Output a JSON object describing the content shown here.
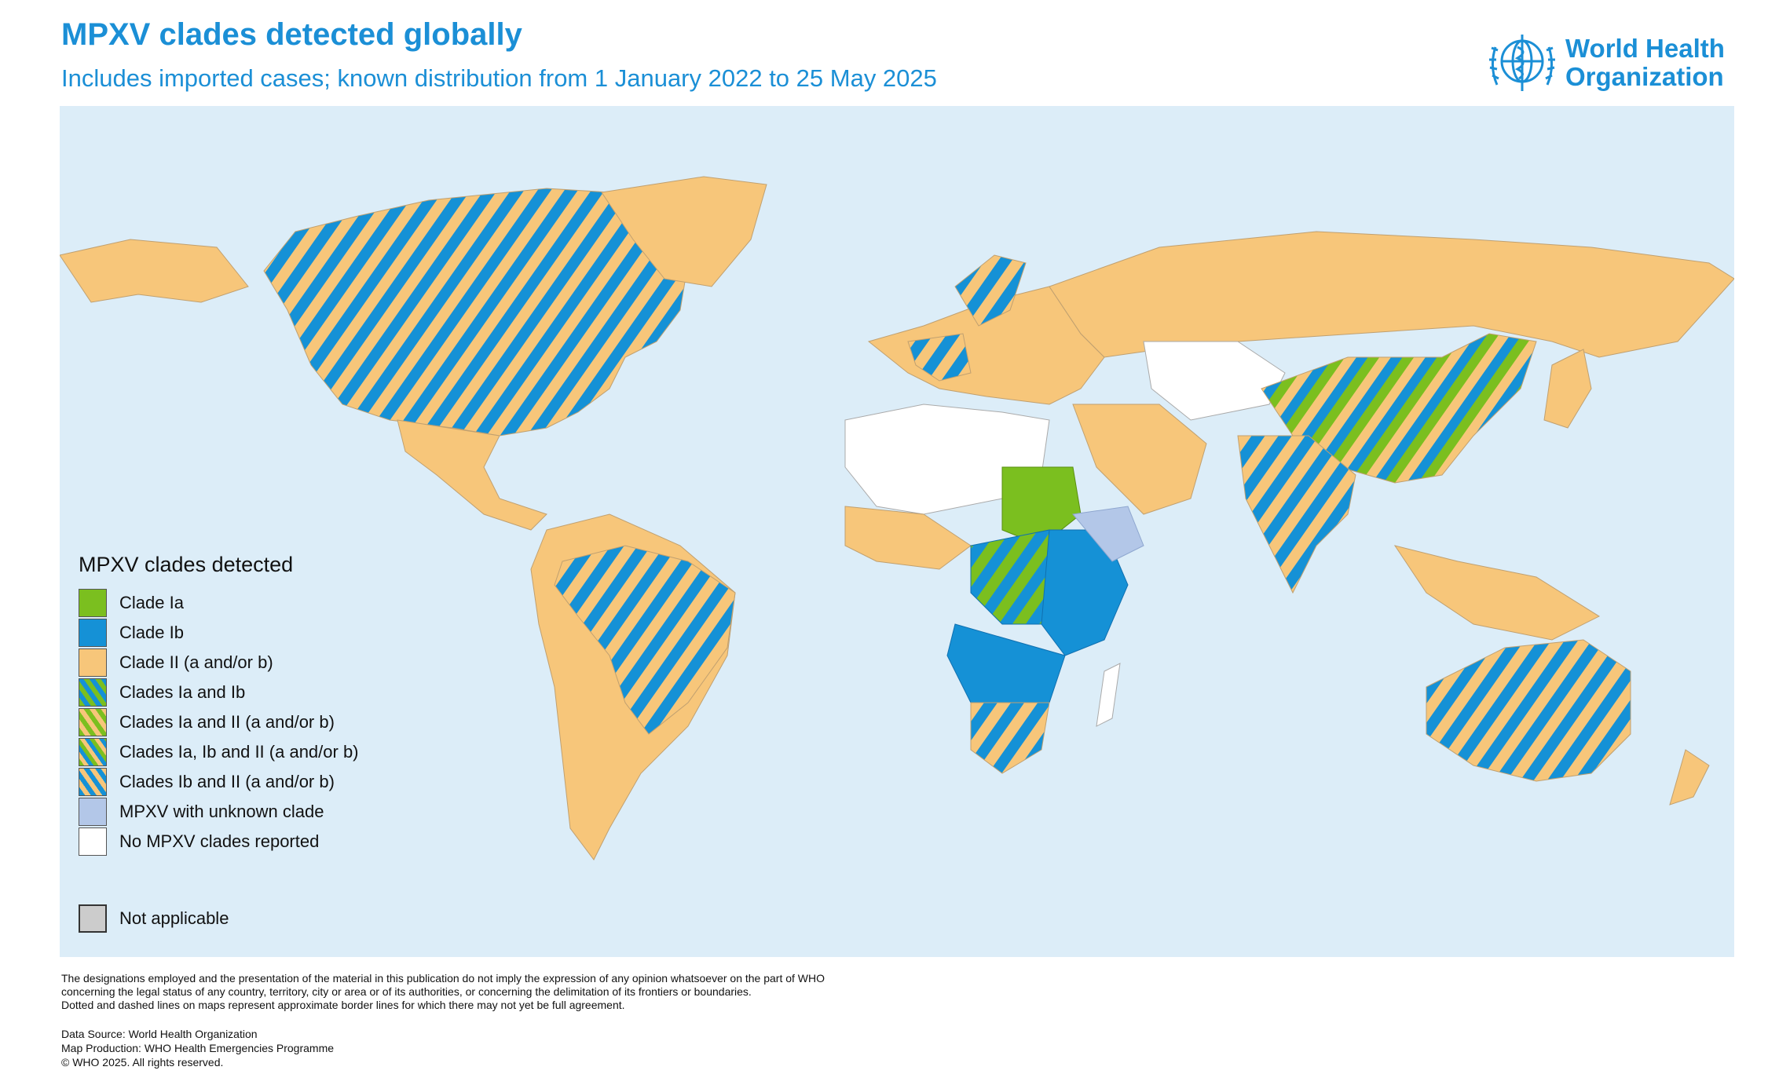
{
  "header": {
    "title": "MPXV clades detected globally",
    "subtitle": "Includes imported cases; known distribution from 1 January 2022 to 25 May 2025"
  },
  "logo": {
    "line1": "World Health",
    "line2": "Organization",
    "icon": "who-emblem-icon"
  },
  "colors": {
    "ocean": "#dcedf8",
    "clade_ia": "#7bbf1f",
    "clade_ib": "#1591d6",
    "clade_ii": "#f7c67a",
    "unknown": "#b3c7e8",
    "none": "#ffffff",
    "not_applicable": "#cccccc"
  },
  "legend": {
    "title": "MPXV clades detected",
    "items": [
      {
        "label": "Clade Ia",
        "fill": "clade_ia"
      },
      {
        "label": "Clade Ib",
        "fill": "clade_ib"
      },
      {
        "label": "Clade II (a and/or b)",
        "fill": "clade_ii"
      },
      {
        "label": "Clades Ia and Ib",
        "fill": "stripe_ia_ib"
      },
      {
        "label": "Clades Ia and II (a and/or b)",
        "fill": "stripe_ia_ii"
      },
      {
        "label": "Clades Ia, Ib and II (a and/or b)",
        "fill": "stripe_ia_ib_ii"
      },
      {
        "label": "Clades Ib and II (a and/or b)",
        "fill": "stripe_ib_ii"
      },
      {
        "label": "MPXV with unknown clade",
        "fill": "unknown"
      },
      {
        "label": "No MPXV clades reported",
        "fill": "none"
      }
    ],
    "not_applicable": "Not applicable"
  },
  "footer": {
    "disclaimer_1": "The designations employed and the presentation of the material in this publication do not imply the expression of any opinion whatsoever on the part of WHO",
    "disclaimer_2": "concerning the legal status of any country, territory, city or area or of its authorities, or concerning the delimitation of its frontiers or boundaries.",
    "disclaimer_3": "Dotted and dashed lines on maps represent approximate border lines for which there may not yet be full agreement.",
    "data_source": "Data Source: World Health Organization",
    "map_production": "Map Production: WHO Health Emergencies Programme",
    "copyright": "© WHO 2025. All rights reserved."
  }
}
